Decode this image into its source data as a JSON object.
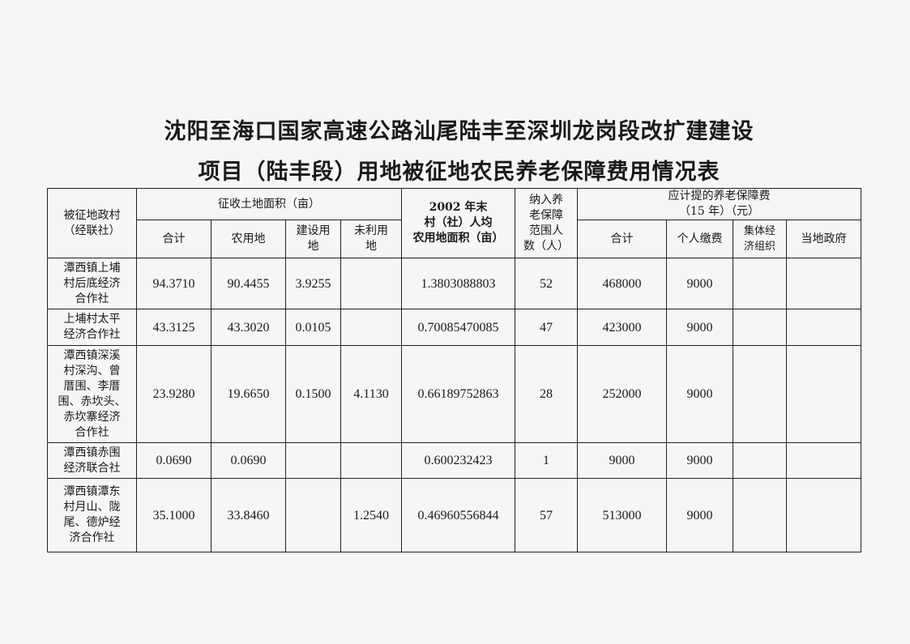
{
  "title": {
    "line1": "沈阳至海口国家高速公路汕尾陆丰至深圳龙岗段改扩建建设",
    "line2": "项目（陆丰段）用地被征地农民养老保障费用情况表"
  },
  "table": {
    "headers": {
      "village": "被征地政村\n（经联社）",
      "land_area": "征收土地面积（亩）",
      "land_total": "合计",
      "farmland": "农用地",
      "construction": "建设用\n地",
      "unused": "未利用\n地",
      "per_capita": "2002 年末\n村（社）人均\n农用地面积（亩）",
      "persons": "纳入养\n老保障\n范围人\n数（人）",
      "fee": "应计提的养老保障费\n（15 年）（元）",
      "fee_total": "合计",
      "personal": "个人缴费",
      "collective": "集体经\n济组织",
      "government": "当地政府"
    },
    "rows": [
      {
        "village": "潭西镇上埔\n村后底经济\n合作社",
        "land_total": "94.3710",
        "farmland": "90.4455",
        "construction": "3.9255",
        "unused": "",
        "per_capita": "1.3803088803",
        "persons": "52",
        "fee_total": "468000",
        "personal": "9000",
        "collective": "",
        "government": ""
      },
      {
        "village": "上埔村太平\n经济合作社",
        "land_total": "43.3125",
        "farmland": "43.3020",
        "construction": "0.0105",
        "unused": "",
        "per_capita": "0.70085470085",
        "persons": "47",
        "fee_total": "423000",
        "personal": "9000",
        "collective": "",
        "government": ""
      },
      {
        "village": "潭西镇深溪\n村深沟、曾\n厝围、李厝\n围、赤坎头、\n赤坎寨经济\n合作社",
        "land_total": "23.9280",
        "farmland": "19.6650",
        "construction": "0.1500",
        "unused": "4.1130",
        "per_capita": "0.66189752863",
        "persons": "28",
        "fee_total": "252000",
        "personal": "9000",
        "collective": "",
        "government": ""
      },
      {
        "village": "潭西镇赤围\n经济联合社",
        "land_total": "0.0690",
        "farmland": "0.0690",
        "construction": "",
        "unused": "",
        "per_capita": "0.600232423",
        "persons": "1",
        "fee_total": "9000",
        "personal": "9000",
        "collective": "",
        "government": ""
      },
      {
        "village": "潭西镇潭东\n村月山、陇\n尾、德炉经\n济合作社",
        "land_total": "35.1000",
        "farmland": "33.8460",
        "construction": "",
        "unused": "1.2540",
        "per_capita": "0.46960556844",
        "persons": "57",
        "fee_total": "513000",
        "personal": "9000",
        "collective": "",
        "government": ""
      }
    ]
  }
}
